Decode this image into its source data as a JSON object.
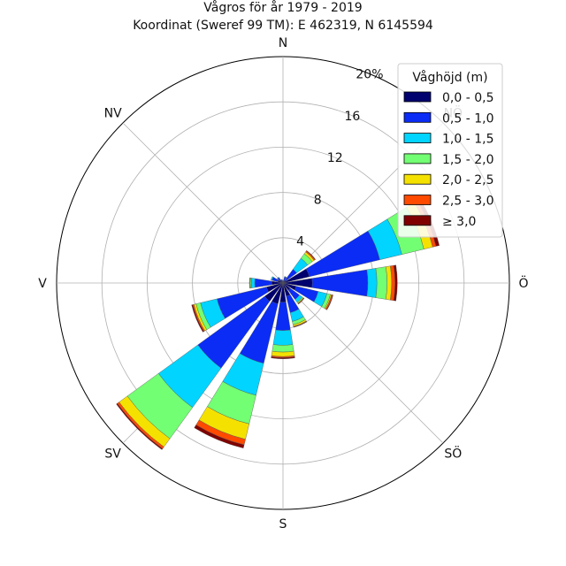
{
  "chart_data": {
    "type": "windrose",
    "title": "Vågros för år 1979 - 2019",
    "subtitle": "Koordinat (Sweref 99 TM): E 462319, N 6145594",
    "directions": [
      {
        "key": "N",
        "label": "N",
        "angle": 0
      },
      {
        "key": "NE",
        "label": "NÖ",
        "angle": 45
      },
      {
        "key": "E",
        "label": "Ö",
        "angle": 90
      },
      {
        "key": "SE",
        "label": "SÖ",
        "angle": 135
      },
      {
        "key": "S",
        "label": "S",
        "angle": 180
      },
      {
        "key": "SW",
        "label": "SV",
        "angle": 225
      },
      {
        "key": "W",
        "label": "V",
        "angle": 270
      },
      {
        "key": "NW",
        "label": "NV",
        "angle": 315
      }
    ],
    "radial_ticks": [
      "4",
      "8",
      "12",
      "16",
      "20%"
    ],
    "radial_max": 20,
    "legend": {
      "title": "Våghöjd (m)",
      "position": "top-right"
    },
    "bins": [
      {
        "label": "0,0 - 0,5",
        "color": "#00006e"
      },
      {
        "label": "0,5 - 1,0",
        "color": "#0a2cf5"
      },
      {
        "label": "1,0 - 1,5",
        "color": "#00d4ff"
      },
      {
        "label": "1,5 - 2,0",
        "color": "#73ff73"
      },
      {
        "label": "2,0 - 2,5",
        "color": "#f5e100"
      },
      {
        "label": "2,5 - 3,0",
        "color": "#ff4a00"
      },
      {
        "label": "≥ 3,0",
        "color": "#800000"
      }
    ],
    "sectors": [
      {
        "angle": 0,
        "values": [
          0.1,
          0.1,
          0.02,
          0,
          0,
          0,
          0
        ]
      },
      {
        "angle": 22.5,
        "values": [
          0.15,
          0.4,
          0.05,
          0,
          0,
          0,
          0
        ]
      },
      {
        "angle": 45,
        "values": [
          0.3,
          1.2,
          1.2,
          0.5,
          0.2,
          0.1,
          0.05
        ]
      },
      {
        "angle": 67.5,
        "values": [
          2.4,
          6.4,
          2.0,
          2.0,
          0.8,
          0.3,
          0.3
        ]
      },
      {
        "angle": 90,
        "values": [
          2.6,
          4.9,
          0.8,
          0.9,
          0.4,
          0.3,
          0.2
        ]
      },
      {
        "angle": 112.5,
        "values": [
          1.2,
          2.0,
          0.8,
          0.3,
          0.1,
          0.1,
          0.05
        ]
      },
      {
        "angle": 135,
        "values": [
          0.8,
          1.0,
          0.3,
          0.1,
          0.05,
          0.05,
          0.02
        ]
      },
      {
        "angle": 157.5,
        "values": [
          1.2,
          1.5,
          0.8,
          0.3,
          0.15,
          0.05,
          0.03
        ]
      },
      {
        "angle": 180,
        "values": [
          1.7,
          2.5,
          1.3,
          0.6,
          0.4,
          0.1,
          0.1
        ]
      },
      {
        "angle": 202.5,
        "values": [
          1.9,
          5.4,
          2.9,
          2.6,
          1.4,
          0.5,
          0.3
        ]
      },
      {
        "angle": 225,
        "values": [
          2.0,
          7.3,
          4.3,
          3.4,
          0.9,
          0.2,
          0.1
        ]
      },
      {
        "angle": 247.5,
        "values": [
          1.5,
          4.5,
          1.5,
          0.4,
          0.2,
          0.1,
          0.1
        ]
      },
      {
        "angle": 270,
        "values": [
          1.0,
          1.5,
          0.3,
          0.1,
          0.05,
          0.02,
          0
        ]
      },
      {
        "angle": 292.5,
        "values": [
          0.5,
          0.5,
          0.1,
          0,
          0,
          0,
          0
        ]
      },
      {
        "angle": 315,
        "values": [
          0.3,
          0.3,
          0.05,
          0,
          0,
          0,
          0
        ]
      },
      {
        "angle": 337.5,
        "values": [
          0.15,
          0.15,
          0.03,
          0,
          0,
          0,
          0
        ]
      }
    ]
  }
}
